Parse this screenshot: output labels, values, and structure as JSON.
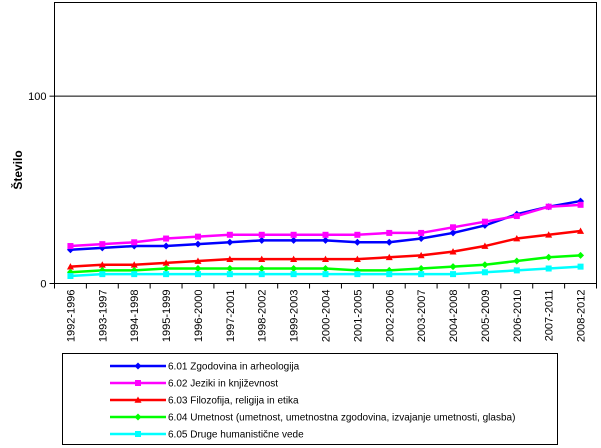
{
  "chart_data": {
    "type": "line",
    "ylabel": "Število",
    "xlabel": "",
    "ylim": [
      0,
      150
    ],
    "y_ticks": [
      0,
      100
    ],
    "gridlines_y": [
      100
    ],
    "legend_position": "bottom",
    "categories": [
      "1992-1996",
      "1993-1997",
      "1994-1998",
      "1995-1999",
      "1996-2000",
      "1997-2001",
      "1998-2002",
      "1999-2003",
      "2000-2004",
      "2001-2005",
      "2002-2006",
      "2003-2007",
      "2004-2008",
      "2005-2009",
      "2006-2010",
      "2007-2011",
      "2008-2012"
    ],
    "series": [
      {
        "name": "6.01 Zgodovina in arheologija",
        "color": "#0000ff",
        "marker": "diamond",
        "values": [
          18,
          19,
          20,
          20,
          21,
          22,
          23,
          23,
          23,
          22,
          22,
          24,
          27,
          31,
          37,
          41,
          44
        ]
      },
      {
        "name": "6.02 Jeziki in književnost",
        "color": "#ff00ff",
        "marker": "square",
        "values": [
          20,
          21,
          22,
          24,
          25,
          26,
          26,
          26,
          26,
          26,
          27,
          27,
          30,
          33,
          36,
          41,
          42
        ]
      },
      {
        "name": "6.03 Filozofija, religija in etika",
        "color": "#ff0000",
        "marker": "triangle",
        "values": [
          9,
          10,
          10,
          11,
          12,
          13,
          13,
          13,
          13,
          13,
          14,
          15,
          17,
          20,
          24,
          26,
          28
        ]
      },
      {
        "name": "6.04 Umetnost (umetnost, umetnostna zgodovina, izvajanje umetnosti, glasba)",
        "color": "#00ff00",
        "marker": "diamond",
        "values": [
          6,
          7,
          7,
          8,
          8,
          8,
          8,
          8,
          8,
          7,
          7,
          8,
          9,
          10,
          12,
          14,
          15
        ]
      },
      {
        "name": "6.05 Druge humanistične vede",
        "color": "#00ffff",
        "marker": "square",
        "values": [
          4,
          5,
          5,
          5,
          5,
          5,
          5,
          5,
          5,
          5,
          5,
          5,
          5,
          6,
          7,
          8,
          9
        ]
      }
    ]
  }
}
